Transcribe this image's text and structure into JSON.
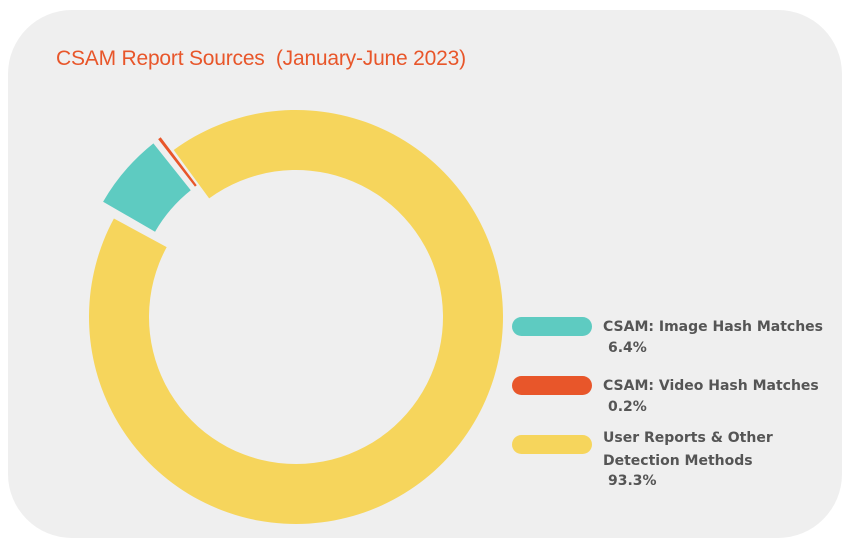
{
  "chart_data": {
    "type": "pie",
    "variant": "donut",
    "title": "CSAM Report Sources  (January-June 2023)",
    "slices": [
      {
        "name": "CSAM: Image Hash Matches",
        "value": 6.4,
        "label": "6.4%",
        "color": "#5ecbc1",
        "exploded": true
      },
      {
        "name": "CSAM: Video Hash Matches",
        "value": 0.2,
        "label": "0.2%",
        "color": "#e8562a",
        "exploded": true
      },
      {
        "name": "User Reports & Other Detection Methods",
        "value": 93.3,
        "label": "93.3%",
        "color": "#f6d55c",
        "exploded": false
      }
    ],
    "legend": {
      "position": "right",
      "items": [
        {
          "lines": [
            "CSAM: Image Hash Matches"
          ],
          "value": "6.4%",
          "color": "#5ecbc1"
        },
        {
          "lines": [
            "CSAM: Video Hash Matches"
          ],
          "value": "0.2%",
          "color": "#e8562a"
        },
        {
          "lines": [
            "User Reports & Other",
            "Detection Methods"
          ],
          "value": "93.3%",
          "color": "#f6d55c"
        }
      ]
    }
  }
}
